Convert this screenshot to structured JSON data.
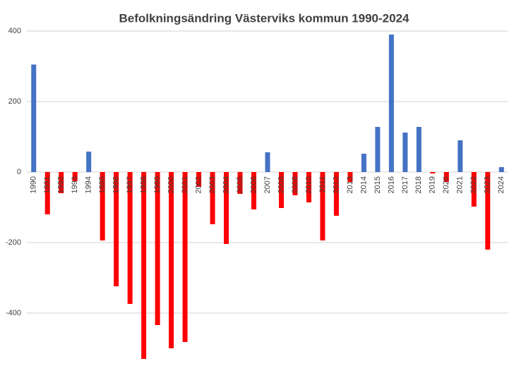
{
  "chart_data": {
    "type": "bar",
    "title": "Befolkningsändring Västerviks kommun 1990-2024",
    "categories": [
      "1990",
      "1991",
      "1992",
      "1993",
      "1994",
      "1995",
      "1996",
      "1997",
      "1998",
      "1999",
      "2000",
      "2001",
      "2002",
      "2003",
      "2004",
      "2005",
      "2006",
      "2007",
      "2008",
      "2009",
      "2010",
      "2011",
      "2012",
      "2013",
      "2014",
      "2015",
      "2016",
      "2017",
      "2018",
      "2019",
      "2020",
      "2021",
      "2022",
      "2023",
      "2024"
    ],
    "values": [
      305,
      -120,
      -60,
      -26,
      58,
      -194,
      -324,
      -374,
      -530,
      -434,
      -500,
      -482,
      -42,
      -148,
      -204,
      -62,
      -106,
      56,
      -102,
      -66,
      -86,
      -194,
      -124,
      -28,
      52,
      128,
      390,
      112,
      128,
      -4,
      -28,
      90,
      -98,
      -220,
      14
    ],
    "positive_color": "#4472c4",
    "negative_color": "#ff0000",
    "ylim": [
      -560,
      440
    ],
    "yticks": [
      -400,
      -200,
      0,
      200,
      400
    ],
    "grid": true
  }
}
